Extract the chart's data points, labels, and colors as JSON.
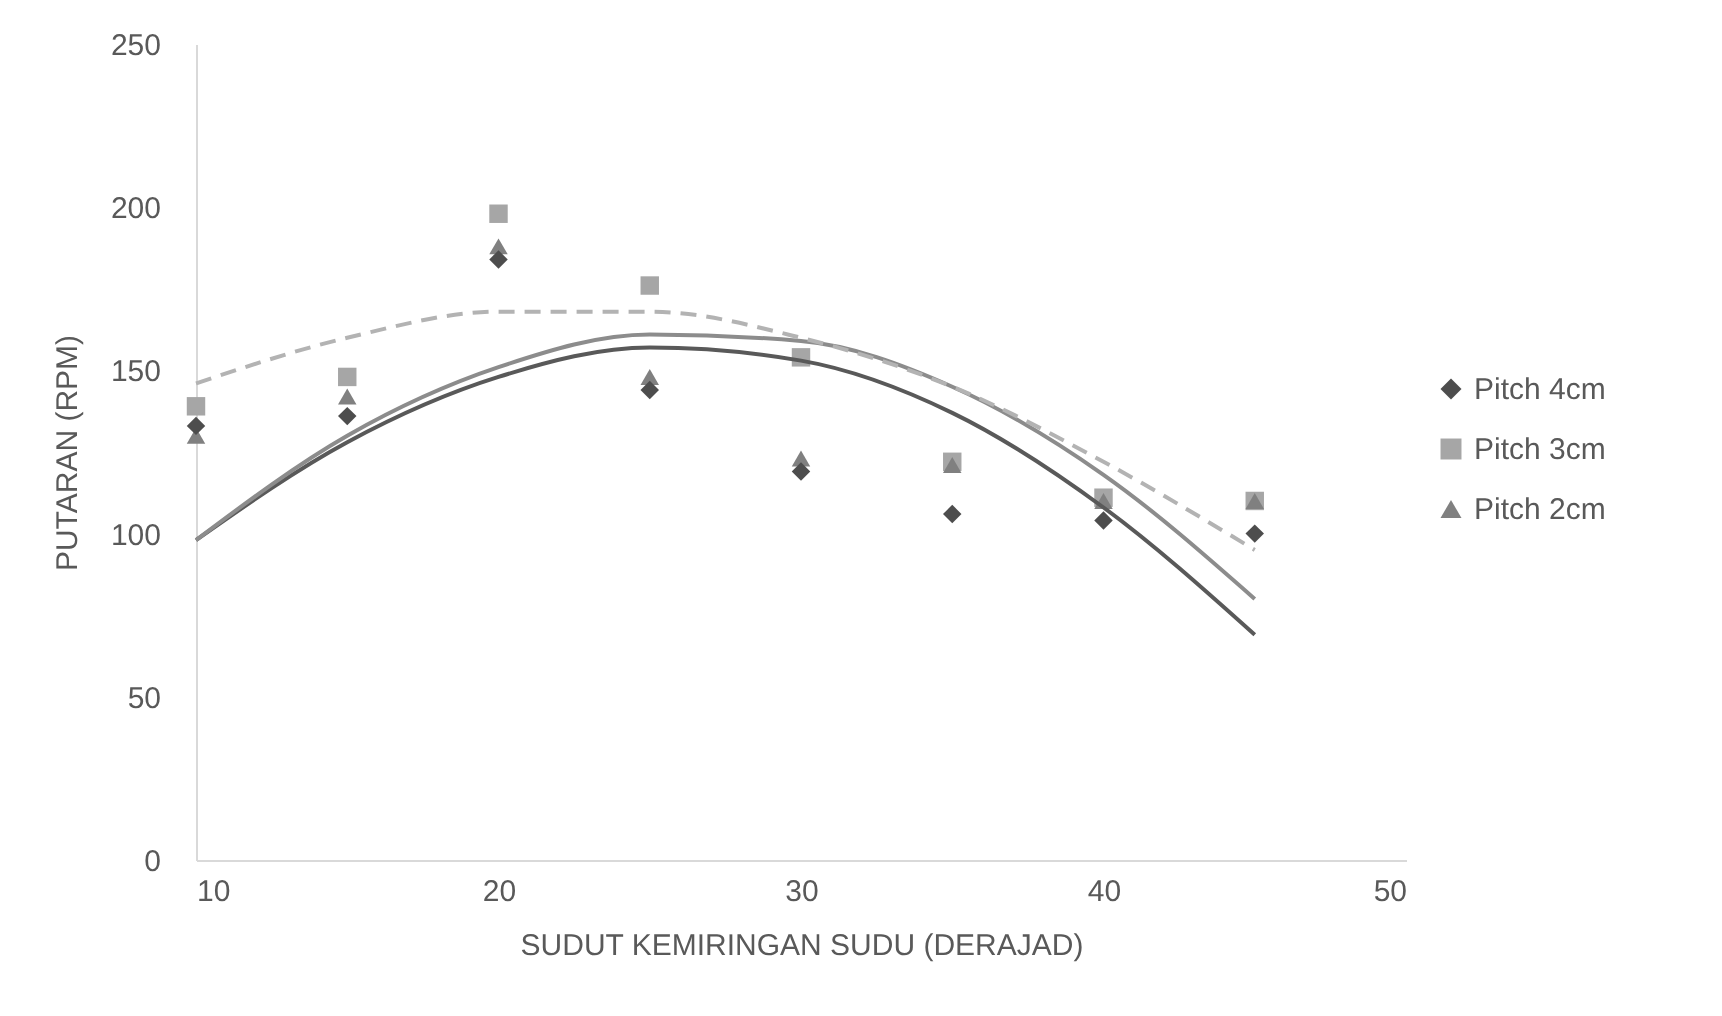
{
  "chart_data": {
    "type": "scatter",
    "xlabel": "SUDUT KEMIRINGAN SUDU (DERAJAD)",
    "ylabel": "PUTARAN (RPM)",
    "x": [
      10,
      15,
      20,
      25,
      30,
      35,
      40,
      45
    ],
    "series": [
      {
        "name": "Pitch 4cm",
        "color": "#4d4d4d",
        "marker": "diamond",
        "values": [
          133,
          136,
          184,
          144,
          119,
          106,
          104,
          100
        ]
      },
      {
        "name": "Pitch 3cm",
        "color": "#a6a6a6",
        "marker": "square",
        "values": [
          139,
          148,
          198,
          176,
          154,
          122,
          111,
          110
        ]
      },
      {
        "name": "Pitch 2cm",
        "color": "#808080",
        "marker": "triangle",
        "values": [
          130,
          142,
          188,
          148,
          123,
          121,
          110,
          110
        ]
      },
      {
        "type": "line",
        "color": "#595959",
        "line_style": "solid",
        "x": [
          10,
          15,
          20,
          25,
          30,
          35,
          40,
          45
        ],
        "values": [
          98,
          128,
          148,
          157,
          153,
          137,
          108,
          69
        ]
      },
      {
        "type": "line",
        "color": "#8c8c8c",
        "line_style": "solid",
        "x": [
          10,
          15,
          20,
          25,
          30,
          35,
          40,
          45
        ],
        "values": [
          98,
          130,
          151,
          161,
          159,
          145,
          118,
          80
        ]
      },
      {
        "type": "line",
        "color": "#b3b3b3",
        "line_style": "dashed",
        "x": [
          10,
          15,
          20,
          25,
          30,
          35,
          40,
          45
        ],
        "values": [
          146,
          160,
          168,
          168,
          160,
          145,
          122,
          95
        ]
      }
    ],
    "xlim": [
      10,
      50
    ],
    "xticks": [
      10,
      20,
      30,
      40,
      50
    ],
    "ylim": [
      0,
      250
    ],
    "yticks": [
      0,
      50,
      100,
      150,
      200,
      250
    ],
    "legend": "right"
  }
}
